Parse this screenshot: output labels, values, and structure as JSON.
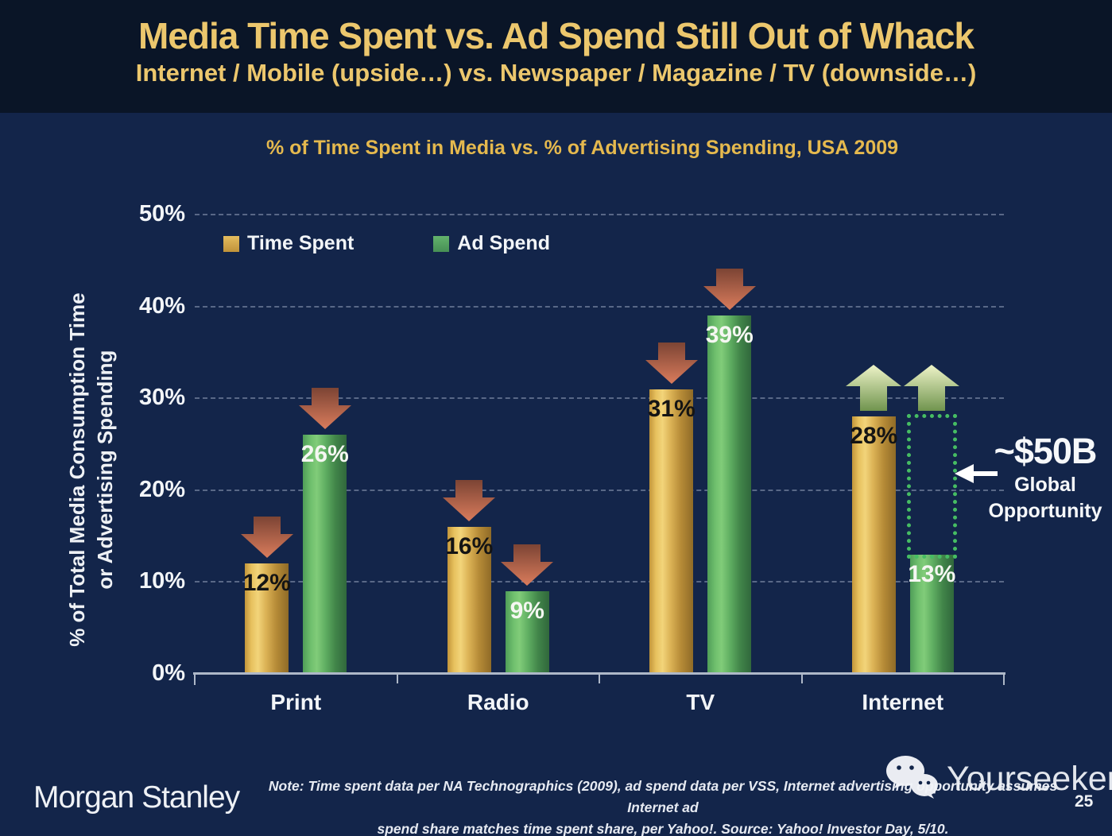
{
  "slide": {
    "title": "Media Time Spent vs. Ad Spend Still Out of Whack",
    "subtitle": "Internet / Mobile (upside…) vs. Newspaper / Magazine / TV (downside…)",
    "page_number": "25"
  },
  "chart_data": {
    "type": "bar",
    "title": "% of Time Spent in Media vs. % of Advertising Spending, USA 2009",
    "ylabel_line1": "% of Total Media Consumption Time",
    "ylabel_line2": "or Advertising Spending",
    "ylim": [
      0,
      50
    ],
    "y_tick_step": 10,
    "y_tick_labels": [
      "0%",
      "10%",
      "20%",
      "30%",
      "40%",
      "50%"
    ],
    "grid": "dashed-horizontal",
    "legend_position": "top-left-inside",
    "categories": [
      "Print",
      "Radio",
      "TV",
      "Internet"
    ],
    "series": [
      {
        "name": "Time Spent",
        "color": "#d9ae52",
        "values": [
          12,
          16,
          31,
          28
        ],
        "data_labels": [
          "12%",
          "16%",
          "31%",
          "28%"
        ],
        "arrows": [
          "down",
          "down",
          "down",
          "up"
        ]
      },
      {
        "name": "Ad Spend",
        "color": "#5aaa64",
        "values": [
          26,
          9,
          39,
          13
        ],
        "data_labels": [
          "26%",
          "9%",
          "39%",
          "13%"
        ],
        "arrows": [
          "down",
          "down",
          "down",
          "up"
        ]
      }
    ],
    "annotation": {
      "value": "~$50B",
      "label_line1": "Global",
      "label_line2": "Opportunity",
      "gap_category": "Internet",
      "gap_from_pct": 13,
      "gap_to_pct": 28
    }
  },
  "colors": {
    "header_bg": "#0a1527",
    "body_bg": "#13254a",
    "title_gold": "#ecc76d",
    "chart_title_gold": "#e5b94e",
    "down_arrow": "#c9694e",
    "up_arrow": "#bcd489",
    "gap_box_green": "#46bd63"
  },
  "icons": {
    "down_arrow": "down-arrow-icon",
    "up_arrow": "up-arrow-icon",
    "left_arrow": "left-arrow-icon",
    "wechat": "wechat-icon"
  },
  "footer": {
    "brand": "Morgan Stanley",
    "note_line1": "Note: Time spent data per NA Technographics (2009), ad spend data per VSS, Internet advertising opportunity assumes Internet ad",
    "note_line2": "spend share matches time spent share, per Yahoo!. Source: Yahoo! Investor Day, 5/10.",
    "watermark": "Yourseeker"
  }
}
